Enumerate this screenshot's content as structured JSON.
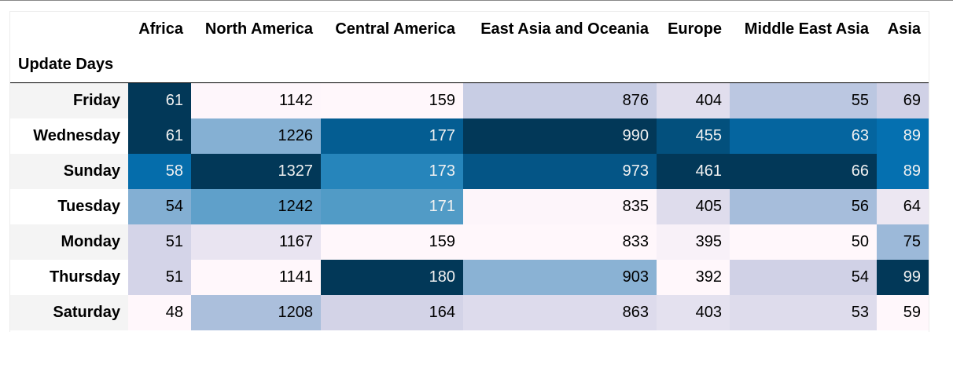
{
  "chart_data": {
    "type": "heatmap",
    "index_label": "Update Days",
    "columns": [
      "Africa",
      "North America",
      "Central America",
      "East Asia and Oceania",
      "Europe",
      "Middle East Asia",
      "Asia"
    ],
    "rows": [
      "Friday",
      "Wednesday",
      "Sunday",
      "Tuesday",
      "Monday",
      "Thursday",
      "Saturday"
    ],
    "values": [
      [
        61,
        1142,
        159,
        876,
        404,
        55,
        69
      ],
      [
        61,
        1226,
        177,
        990,
        455,
        63,
        89
      ],
      [
        58,
        1327,
        173,
        973,
        461,
        66,
        89
      ],
      [
        54,
        1242,
        171,
        835,
        405,
        56,
        64
      ],
      [
        51,
        1167,
        159,
        833,
        395,
        50,
        75
      ],
      [
        51,
        1141,
        180,
        903,
        392,
        54,
        99
      ],
      [
        48,
        1208,
        164,
        863,
        403,
        53,
        59
      ]
    ],
    "colormap": "PuBu",
    "color_scale": "per-column"
  }
}
